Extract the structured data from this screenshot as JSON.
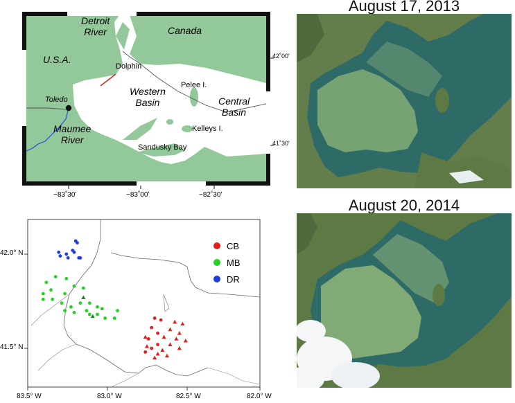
{
  "colors": {
    "land": "#93c99a",
    "water": "#ffffff",
    "frame_dark": "#111111",
    "dolphin_line": "#e0201a",
    "maumee_river": "#1f4fd8",
    "satellite_land": "#5d7a45",
    "satellite_water": "#2e6a66",
    "bloom": "#8fb57a",
    "cb": "#e0201a",
    "mb": "#22d422",
    "dr": "#1e3fe0"
  },
  "top_map": {
    "labels": {
      "detroit_river": "Detroit\nRiver",
      "canada": "Canada",
      "usa": "U.S.A.",
      "dolphin": "Dolphin",
      "western_basin": "Western\nBasin",
      "pelee": "Pelee I.",
      "central_basin": "Central\nBasin",
      "toledo": "Toledo",
      "maumee_river": "Maumee\nRiver",
      "kelleys": "Kelleys I.",
      "sandusky_bay": "Sandusky Bay"
    },
    "lat_ticks": [
      "42˚00'",
      "41˚30'"
    ],
    "lon_ticks": [
      "−83˚30'",
      "−83˚00'",
      "−82˚30'"
    ]
  },
  "bottom_map": {
    "legend": [
      {
        "code": "CB",
        "color": "#e0201a"
      },
      {
        "code": "MB",
        "color": "#22d422"
      },
      {
        "code": "DR",
        "color": "#1e3fe0"
      }
    ],
    "lat_ticks": [
      "42.0° N",
      "41.5° N"
    ],
    "lon_ticks": [
      "83.5° W",
      "83.0° W",
      "82.5° W",
      "82.0° W"
    ],
    "stations": {
      "CB": [
        [
          82.68,
          41.66
        ],
        [
          82.64,
          41.65
        ],
        [
          82.7,
          41.61
        ],
        [
          82.66,
          41.58
        ],
        [
          82.72,
          41.55
        ],
        [
          82.66,
          41.52
        ],
        [
          82.7,
          41.5
        ],
        [
          82.74,
          41.48
        ]
      ],
      "CB_tri": [
        [
          82.55,
          41.64
        ],
        [
          82.5,
          41.63
        ],
        [
          82.58,
          41.6
        ],
        [
          82.52,
          41.58
        ],
        [
          82.62,
          41.56
        ],
        [
          82.54,
          41.55
        ],
        [
          82.48,
          41.54
        ],
        [
          82.58,
          41.52
        ],
        [
          82.52,
          41.5
        ],
        [
          82.63,
          41.49
        ],
        [
          82.73,
          41.51
        ],
        [
          82.66,
          41.47
        ],
        [
          82.68,
          41.45
        ],
        [
          82.74,
          41.56
        ],
        [
          82.6,
          41.46
        ]
      ],
      "MB": [
        [
          83.38,
          41.85
        ],
        [
          83.32,
          41.88
        ],
        [
          83.25,
          41.87
        ],
        [
          83.2,
          41.83
        ],
        [
          83.14,
          41.82
        ],
        [
          83.26,
          41.79
        ],
        [
          83.35,
          41.81
        ],
        [
          83.4,
          41.79
        ],
        [
          83.34,
          41.76
        ],
        [
          83.4,
          41.76
        ],
        [
          83.28,
          41.74
        ],
        [
          83.22,
          41.72
        ],
        [
          83.16,
          41.74
        ],
        [
          83.1,
          41.74
        ],
        [
          83.05,
          41.72
        ],
        [
          83.26,
          41.7
        ],
        [
          83.2,
          41.69
        ],
        [
          83.12,
          41.7
        ],
        [
          83.05,
          41.68
        ],
        [
          83.0,
          41.66
        ],
        [
          82.92,
          41.7
        ],
        [
          82.94,
          41.66
        ],
        [
          83.02,
          41.71
        ],
        [
          83.1,
          41.68
        ]
      ],
      "MB_tri": [
        [
          83.14,
          41.77
        ],
        [
          83.08,
          41.67
        ]
      ],
      "DR": [
        [
          83.19,
          42.07
        ],
        [
          83.18,
          42.06
        ],
        [
          83.21,
          42.02
        ],
        [
          83.2,
          42.01
        ],
        [
          83.25,
          42.0
        ],
        [
          83.29,
          41.99
        ],
        [
          83.3,
          42.01
        ],
        [
          83.17,
          41.98
        ],
        [
          83.16,
          41.98
        ],
        [
          83.24,
          41.98
        ]
      ]
    }
  },
  "satellite": {
    "captions": [
      "August 17, 2013",
      "August 20, 2014"
    ]
  }
}
